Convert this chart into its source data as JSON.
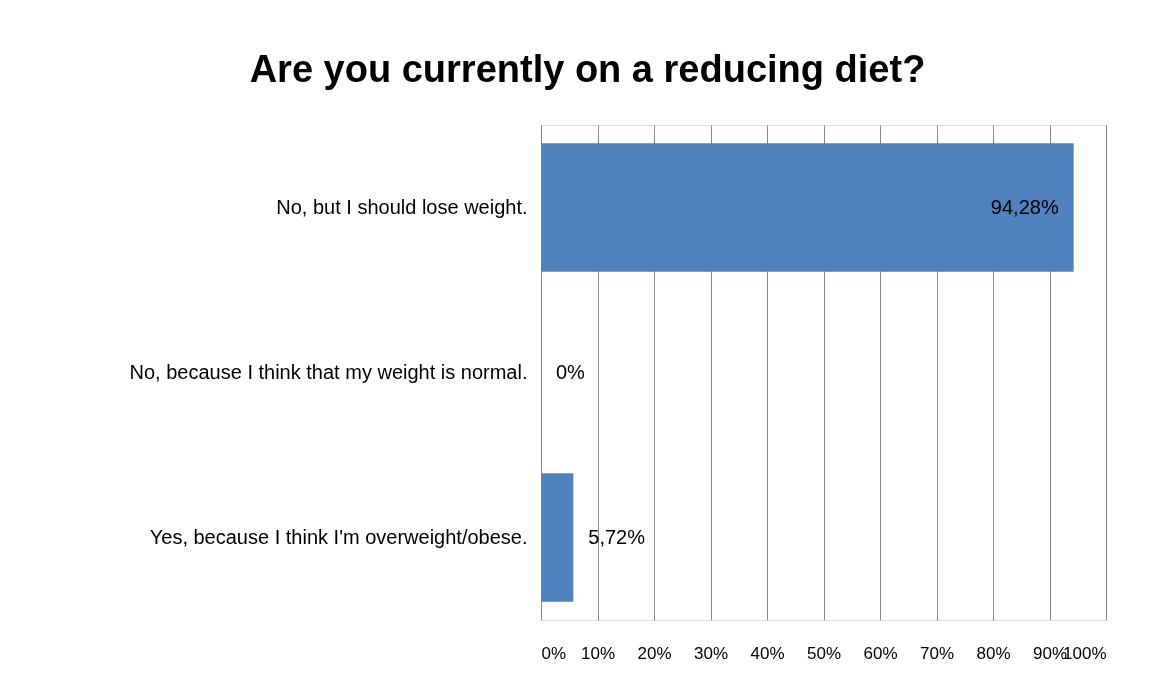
{
  "chart_data": {
    "type": "bar",
    "orientation": "horizontal",
    "title": "Are you currently on a reducing diet?",
    "categories": [
      "No, but I should lose weight.",
      "No, because I think that my weight is normal.",
      "Yes, because I think I'm overweight/obese."
    ],
    "values": [
      94.28,
      0,
      5.72
    ],
    "value_labels": [
      "94,28%",
      "0%",
      "5,72%"
    ],
    "color": "#4f81bd",
    "xlim": [
      0,
      100
    ],
    "xticks": [
      {
        "value": 0,
        "label": "0%"
      },
      {
        "value": 10,
        "label": "10%"
      },
      {
        "value": 20,
        "label": "20%"
      },
      {
        "value": 30,
        "label": "30%"
      },
      {
        "value": 40,
        "label": "40%"
      },
      {
        "value": 50,
        "label": "50%"
      },
      {
        "value": 60,
        "label": "60%"
      },
      {
        "value": 70,
        "label": "70%"
      },
      {
        "value": 80,
        "label": "80%"
      },
      {
        "value": 90,
        "label": "90%"
      },
      {
        "value": 100,
        "label": "100%"
      }
    ],
    "grid": "x"
  }
}
